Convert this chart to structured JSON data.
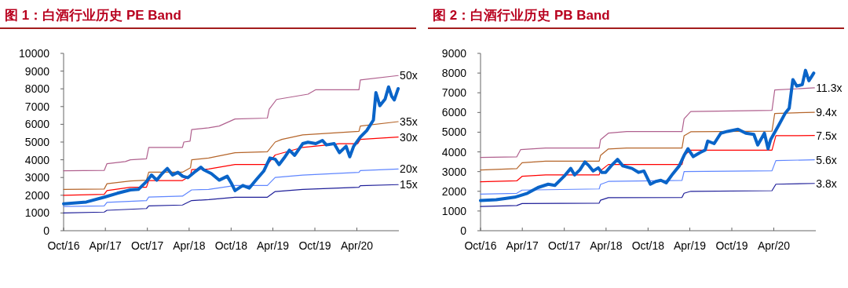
{
  "chart_data": [
    {
      "type": "line",
      "title": "图 1：白酒行业历史 PE Band",
      "xlim": [
        "2016-10-01",
        "2020-10-01"
      ],
      "ylim": [
        0,
        10000
      ],
      "yticks": [
        0,
        1000,
        2000,
        3000,
        4000,
        5000,
        6000,
        7000,
        8000,
        9000,
        10000
      ],
      "xticks": [
        {
          "value": "2016-10-01",
          "label": "Oct/16"
        },
        {
          "value": "2017-04-01",
          "label": "Apr/17"
        },
        {
          "value": "2017-10-01",
          "label": "Oct/17"
        },
        {
          "value": "2018-04-01",
          "label": "Apr/18"
        },
        {
          "value": "2018-10-01",
          "label": "Oct/18"
        },
        {
          "value": "2019-04-01",
          "label": "Apr/19"
        },
        {
          "value": "2019-10-01",
          "label": "Oct/19"
        },
        {
          "value": "2020-04-01",
          "label": "Apr/20"
        }
      ],
      "series": [
        {
          "name": "50x",
          "color": "#b0608e",
          "x": [
            "2016-10-01",
            "2017-03-27",
            "2017-04-08",
            "2017-06-27",
            "2017-07-19",
            "2017-09-27",
            "2017-10-07",
            "2018-03-03",
            "2018-03-09",
            "2018-04-05",
            "2018-04-12",
            "2018-06-25",
            "2018-08-10",
            "2018-10-18",
            "2019-03-08",
            "2019-03-16",
            "2019-04-17",
            "2019-09-01",
            "2019-10-05",
            "2020-04-10",
            "2020-04-16",
            "2020-09-28"
          ],
          "values": [
            3380,
            3400,
            3780,
            3900,
            4000,
            4050,
            4700,
            4700,
            5000,
            5050,
            5700,
            5800,
            5900,
            6300,
            6350,
            6850,
            7400,
            7700,
            7950,
            7950,
            8500,
            8750
          ]
        },
        {
          "name": "35x",
          "color": "#b5652a",
          "x": [
            "2016-10-01",
            "2017-03-27",
            "2017-04-08",
            "2017-07-19",
            "2017-09-27",
            "2017-10-07",
            "2018-03-03",
            "2018-04-07",
            "2018-04-12",
            "2018-06-25",
            "2018-10-18",
            "2019-03-08",
            "2019-04-11",
            "2019-05-10",
            "2019-08-09",
            "2020-04-10",
            "2020-04-16",
            "2020-09-28"
          ],
          "values": [
            2330,
            2350,
            2650,
            2800,
            2850,
            3300,
            3300,
            3550,
            4000,
            4100,
            4400,
            4450,
            5000,
            5150,
            5400,
            5600,
            5900,
            6150
          ]
        },
        {
          "name": "30x",
          "color": "#ff0000",
          "x": [
            "2016-10-01",
            "2017-03-27",
            "2017-04-08",
            "2017-07-19",
            "2017-09-27",
            "2017-10-07",
            "2018-03-03",
            "2018-04-07",
            "2018-04-12",
            "2018-06-25",
            "2018-10-18",
            "2019-03-08",
            "2019-04-11",
            "2019-08-09",
            "2020-01-16",
            "2020-04-05",
            "2020-04-16",
            "2020-09-28"
          ],
          "values": [
            2000,
            2050,
            2260,
            2450,
            2450,
            2830,
            2830,
            3100,
            3450,
            3480,
            3730,
            3730,
            4270,
            4700,
            4910,
            4910,
            5150,
            5280
          ]
        },
        {
          "name": "20x",
          "color": "#5f86ff",
          "x": [
            "2016-10-01",
            "2017-03-27",
            "2017-04-08",
            "2017-09-27",
            "2017-10-07",
            "2018-03-03",
            "2018-04-12",
            "2018-06-25",
            "2018-10-18",
            "2019-03-08",
            "2019-04-11",
            "2019-08-09",
            "2020-04-10",
            "2020-04-16",
            "2020-09-28"
          ],
          "values": [
            1370,
            1400,
            1600,
            1700,
            1900,
            1950,
            2300,
            2330,
            2550,
            2550,
            3000,
            3140,
            3290,
            3390,
            3480
          ]
        },
        {
          "name": "15x",
          "color": "#1f1f99",
          "x": [
            "2016-10-01",
            "2017-03-27",
            "2017-04-08",
            "2017-09-27",
            "2017-10-07",
            "2018-03-03",
            "2018-04-12",
            "2018-06-25",
            "2018-10-18",
            "2019-03-08",
            "2019-04-11",
            "2019-08-09",
            "2020-04-10",
            "2020-04-16",
            "2020-09-28"
          ],
          "values": [
            1000,
            1050,
            1150,
            1250,
            1400,
            1450,
            1700,
            1750,
            1890,
            1890,
            2210,
            2330,
            2450,
            2540,
            2600
          ]
        },
        {
          "color": "#0a64c8",
          "x": [
            "2016-10-01",
            "2017-01-08",
            "2017-03-27",
            "2017-05-23",
            "2017-07-19",
            "2017-08-23",
            "2017-09-27",
            "2017-10-19",
            "2017-11-11",
            "2017-12-04",
            "2017-12-27",
            "2018-01-19",
            "2018-02-11",
            "2018-03-04",
            "2018-03-26",
            "2018-04-30",
            "2018-05-22",
            "2018-06-03",
            "2018-07-07",
            "2018-08-10",
            "2018-09-14",
            "2018-10-01",
            "2018-10-18",
            "2018-11-21",
            "2018-12-19",
            "2019-01-17",
            "2019-02-20",
            "2019-03-19",
            "2019-04-11",
            "2019-04-28",
            "2019-05-20",
            "2019-06-12",
            "2019-07-05",
            "2019-08-09",
            "2019-09-01",
            "2019-10-05",
            "2019-11-03",
            "2019-11-20",
            "2019-12-24",
            "2020-01-16",
            "2020-02-14",
            "2020-03-01",
            "2020-03-18",
            "2020-04-16",
            "2020-05-14",
            "2020-06-12",
            "2020-06-23",
            "2020-07-10",
            "2020-08-02",
            "2020-08-17",
            "2020-08-31",
            "2020-09-11",
            "2020-09-28"
          ],
          "values": [
            1520,
            1620,
            1890,
            2110,
            2300,
            2330,
            2770,
            3140,
            2850,
            3220,
            3510,
            3140,
            3290,
            3070,
            2990,
            3360,
            3580,
            3440,
            3220,
            2850,
            3070,
            2700,
            2260,
            2550,
            2400,
            2850,
            3360,
            4100,
            4030,
            3730,
            4100,
            4540,
            4250,
            4910,
            4990,
            4910,
            5090,
            4840,
            4910,
            4400,
            4760,
            4170,
            4760,
            5280,
            5650,
            6240,
            7790,
            7050,
            7420,
            8110,
            7570,
            7370,
            8010
          ]
        }
      ]
    },
    {
      "type": "line",
      "title": "图 2：白酒行业历史 PB Band",
      "xlim": [
        "2016-10-01",
        "2020-10-01"
      ],
      "ylim": [
        0,
        9000
      ],
      "yticks": [
        0,
        1000,
        2000,
        3000,
        4000,
        5000,
        6000,
        7000,
        8000,
        9000
      ],
      "xticks": [
        {
          "value": "2016-10-01",
          "label": "Oct/16"
        },
        {
          "value": "2017-04-01",
          "label": "Apr/17"
        },
        {
          "value": "2017-10-01",
          "label": "Oct/17"
        },
        {
          "value": "2018-04-01",
          "label": "Apr/18"
        },
        {
          "value": "2018-10-01",
          "label": "Oct/18"
        },
        {
          "value": "2019-04-01",
          "label": "Apr/19"
        },
        {
          "value": "2019-10-01",
          "label": "Oct/19"
        },
        {
          "value": "2020-04-01",
          "label": "Apr/20"
        }
      ],
      "series": [
        {
          "name": "11.3x",
          "color": "#b0608e",
          "x": [
            "2016-10-01",
            "2017-03-08",
            "2017-03-25",
            "2017-07-12",
            "2018-03-02",
            "2018-03-08",
            "2018-04-11",
            "2018-06-30",
            "2019-02-26",
            "2019-03-07",
            "2019-04-05",
            "2020-03-24",
            "2020-04-05",
            "2020-09-25"
          ],
          "values": [
            3720,
            3750,
            4120,
            4200,
            4200,
            4620,
            4950,
            5030,
            5030,
            5680,
            6050,
            6110,
            7140,
            7250
          ]
        },
        {
          "name": "9.4x",
          "color": "#b5652a",
          "x": [
            "2016-10-01",
            "2017-03-08",
            "2017-03-31",
            "2017-07-12",
            "2018-03-02",
            "2018-03-08",
            "2018-04-11",
            "2018-06-30",
            "2019-02-26",
            "2019-03-07",
            "2019-04-05",
            "2020-03-24",
            "2020-04-05",
            "2020-09-25"
          ],
          "values": [
            3080,
            3150,
            3450,
            3530,
            3530,
            3820,
            4150,
            4200,
            4200,
            4820,
            5020,
            5050,
            5950,
            6010
          ]
        },
        {
          "name": "7.5x",
          "color": "#ff0000",
          "x": [
            "2016-10-01",
            "2017-03-08",
            "2017-03-31",
            "2017-07-12",
            "2018-03-02",
            "2018-03-08",
            "2018-04-11",
            "2019-02-26",
            "2019-03-07",
            "2019-04-05",
            "2020-03-24",
            "2020-04-10",
            "2020-09-25"
          ],
          "values": [
            2480,
            2530,
            2760,
            2830,
            2830,
            3050,
            3360,
            3360,
            3820,
            4090,
            4090,
            4820,
            4830
          ]
        },
        {
          "name": "5.6x",
          "color": "#5f86ff",
          "x": [
            "2016-10-01",
            "2017-03-08",
            "2017-03-31",
            "2018-03-02",
            "2018-03-08",
            "2018-04-11",
            "2019-02-26",
            "2019-03-07",
            "2020-03-24",
            "2020-04-10",
            "2020-09-25"
          ],
          "values": [
            1860,
            1900,
            2060,
            2120,
            2350,
            2500,
            2550,
            3000,
            3040,
            3560,
            3600
          ]
        },
        {
          "name": "3.8x",
          "color": "#1f1f99",
          "x": [
            "2016-10-01",
            "2017-03-08",
            "2017-03-31",
            "2018-03-02",
            "2018-03-08",
            "2018-04-11",
            "2019-02-26",
            "2019-03-07",
            "2019-04-05",
            "2020-03-24",
            "2020-04-10",
            "2020-09-25"
          ],
          "values": [
            1230,
            1280,
            1380,
            1400,
            1550,
            1680,
            1690,
            1900,
            2000,
            2030,
            2360,
            2400
          ]
        },
        {
          "color": "#0a64c8",
          "x": [
            "2016-10-01",
            "2016-12-08",
            "2017-02-27",
            "2017-04-23",
            "2017-06-08",
            "2017-07-23",
            "2017-08-21",
            "2017-09-30",
            "2017-10-29",
            "2017-11-15",
            "2017-12-08",
            "2017-12-30",
            "2018-01-17",
            "2018-02-04",
            "2018-02-26",
            "2018-03-13",
            "2018-03-30",
            "2018-04-23",
            "2018-05-21",
            "2018-06-13",
            "2018-07-23",
            "2018-08-21",
            "2018-09-13",
            "2018-10-11",
            "2018-11-04",
            "2018-11-26",
            "2018-12-19",
            "2019-01-17",
            "2019-02-14",
            "2019-03-07",
            "2019-03-24",
            "2019-04-16",
            "2019-05-15",
            "2019-06-07",
            "2019-06-18",
            "2019-07-16",
            "2019-08-14",
            "2019-09-12",
            "2019-10-28",
            "2019-12-01",
            "2020-01-05",
            "2020-01-22",
            "2020-02-20",
            "2020-03-07",
            "2020-03-18",
            "2020-04-22",
            "2020-05-20",
            "2020-06-07",
            "2020-06-23",
            "2020-07-10",
            "2020-08-03",
            "2020-08-17",
            "2020-09-01",
            "2020-09-12",
            "2020-09-22"
          ],
          "values": [
            1530,
            1570,
            1700,
            1900,
            2190,
            2360,
            2300,
            2760,
            3160,
            2830,
            3090,
            3490,
            3290,
            3030,
            3190,
            2960,
            2960,
            3290,
            3620,
            3290,
            3160,
            2960,
            3030,
            2360,
            2500,
            2560,
            2430,
            2890,
            3290,
            3820,
            4160,
            3760,
            3960,
            4090,
            4550,
            4420,
            4950,
            5040,
            5150,
            4950,
            4890,
            4350,
            4950,
            4160,
            4620,
            5350,
            5950,
            6210,
            7670,
            7340,
            7410,
            8140,
            7610,
            7810,
            8000
          ]
        }
      ]
    }
  ]
}
